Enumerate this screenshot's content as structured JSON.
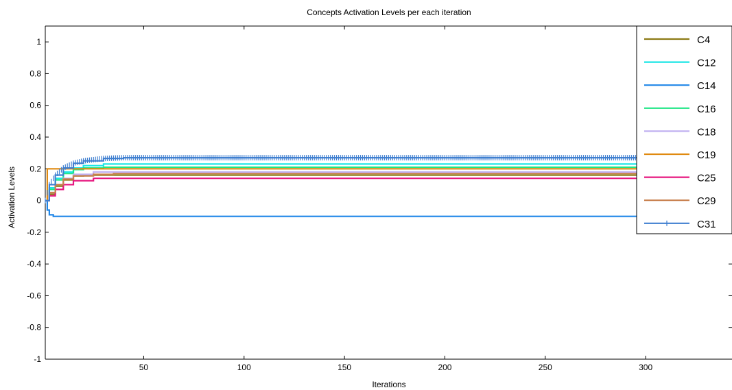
{
  "chart_data": {
    "type": "line",
    "title": "Concepts Activation Levels per  each iteration",
    "xlabel": "Iterations",
    "ylabel": "Activation Levels",
    "xlim": [
      1,
      343
    ],
    "ylim": [
      -1,
      1.1
    ],
    "xticks": [
      50,
      100,
      150,
      200,
      250,
      300
    ],
    "yticks": [
      1,
      0.8,
      0.6,
      0.4,
      0.2,
      0,
      -0.2,
      -0.4,
      -0.6,
      -0.8,
      -1
    ],
    "ytick_labels": [
      "1",
      "0.8",
      "0.6",
      "0.4",
      "0.2",
      "0",
      "-0.2",
      "-0.4",
      "-0.6",
      "-0.8",
      "-1"
    ],
    "grid": false,
    "legend_position": "top-right",
    "series": [
      {
        "name": "C4",
        "color": "#8c7a14",
        "final": 0.16,
        "curve": [
          [
            1,
            0
          ],
          [
            3,
            0.04
          ],
          [
            6,
            0.09
          ],
          [
            10,
            0.13
          ],
          [
            15,
            0.155
          ],
          [
            20,
            0.16
          ],
          [
            343,
            0.16
          ]
        ]
      },
      {
        "name": "C12",
        "color": "#19e6e6",
        "final": 0.23,
        "curve": [
          [
            1,
            0
          ],
          [
            3,
            0.08
          ],
          [
            6,
            0.14
          ],
          [
            10,
            0.18
          ],
          [
            15,
            0.205
          ],
          [
            20,
            0.22
          ],
          [
            30,
            0.23
          ],
          [
            343,
            0.23
          ]
        ]
      },
      {
        "name": "C14",
        "color": "#1f86e8",
        "final": -0.1,
        "curve": [
          [
            1,
            0
          ],
          [
            2,
            -0.06
          ],
          [
            3,
            -0.09
          ],
          [
            5,
            -0.1
          ],
          [
            343,
            -0.1
          ]
        ]
      },
      {
        "name": "C16",
        "color": "#1ee685",
        "final": 0.21,
        "curve": [
          [
            1,
            0
          ],
          [
            3,
            0.07
          ],
          [
            6,
            0.13
          ],
          [
            10,
            0.17
          ],
          [
            15,
            0.195
          ],
          [
            20,
            0.205
          ],
          [
            30,
            0.21
          ],
          [
            343,
            0.21
          ]
        ]
      },
      {
        "name": "C18",
        "color": "#c0b0f0",
        "final": 0.18,
        "curve": [
          [
            1,
            0
          ],
          [
            3,
            0.05
          ],
          [
            6,
            0.1
          ],
          [
            10,
            0.14
          ],
          [
            15,
            0.165
          ],
          [
            25,
            0.18
          ],
          [
            343,
            0.18
          ]
        ]
      },
      {
        "name": "C19",
        "color": "#e08a10",
        "final": 0.2,
        "curve": [
          [
            1,
            0
          ],
          [
            2,
            0.2
          ],
          [
            343,
            0.2
          ]
        ]
      },
      {
        "name": "C25",
        "color": "#e6177f",
        "final": 0.14,
        "curve": [
          [
            1,
            0
          ],
          [
            3,
            0.03
          ],
          [
            6,
            0.07
          ],
          [
            10,
            0.1
          ],
          [
            15,
            0.125
          ],
          [
            25,
            0.14
          ],
          [
            343,
            0.14
          ]
        ]
      },
      {
        "name": "C29",
        "color": "#c8804e",
        "final": 0.17,
        "curve": [
          [
            1,
            0
          ],
          [
            3,
            0.05
          ],
          [
            6,
            0.1
          ],
          [
            10,
            0.135
          ],
          [
            15,
            0.155
          ],
          [
            25,
            0.165
          ],
          [
            35,
            0.17
          ],
          [
            343,
            0.17
          ]
        ]
      },
      {
        "name": "C31",
        "color": "#3f7fd0",
        "final": 0.27,
        "markers": true,
        "curve": [
          [
            1,
            0
          ],
          [
            3,
            0.1
          ],
          [
            6,
            0.16
          ],
          [
            10,
            0.205
          ],
          [
            15,
            0.235
          ],
          [
            20,
            0.25
          ],
          [
            30,
            0.265
          ],
          [
            40,
            0.27
          ],
          [
            343,
            0.27
          ]
        ]
      }
    ]
  }
}
